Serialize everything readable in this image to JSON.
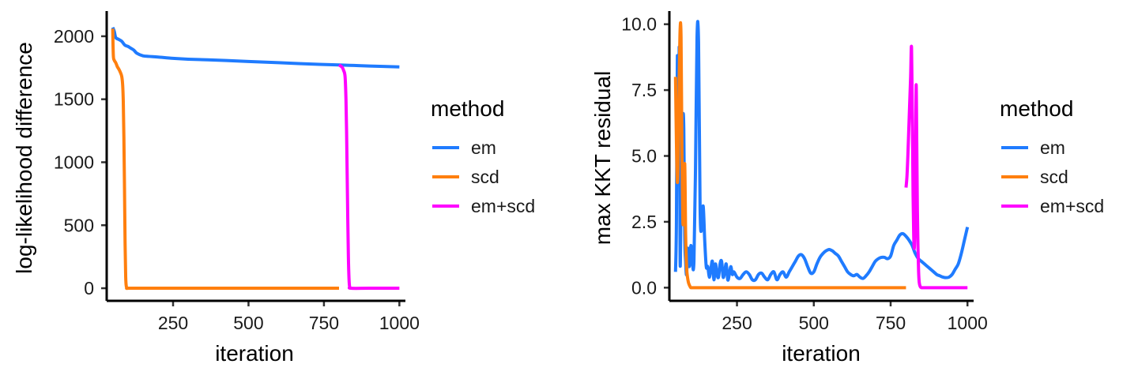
{
  "colors": {
    "em": "#1F7BFF",
    "scd": "#FF7F0E",
    "em+scd": "#FF00FF"
  },
  "chart_data": [
    {
      "type": "line",
      "title": "",
      "xlabel": "iteration",
      "ylabel": "log-likelihood difference",
      "xlim": [
        30,
        1020
      ],
      "ylim": [
        -100,
        2200
      ],
      "xticks": [
        250,
        500,
        750,
        1000
      ],
      "xtick_labels": [
        "250",
        "500",
        "750",
        "1000"
      ],
      "yticks": [
        0,
        500,
        1000,
        1500,
        2000
      ],
      "ytick_labels": [
        "0",
        "500",
        "1000",
        "1500",
        "2000"
      ],
      "legend": {
        "title": "method",
        "position": "right",
        "labels": [
          "em",
          "scd",
          "em+scd"
        ]
      },
      "series": [
        {
          "name": "em",
          "color": "#1F7BFF",
          "x": [
            50,
            55,
            60,
            70,
            80,
            90,
            100,
            110,
            120,
            130,
            150,
            170,
            200,
            250,
            300,
            400,
            500,
            600,
            700,
            800,
            850,
            900,
            1000
          ],
          "y": [
            2070,
            2040,
            1990,
            1975,
            1960,
            1930,
            1920,
            1905,
            1890,
            1865,
            1845,
            1840,
            1835,
            1825,
            1818,
            1810,
            1800,
            1790,
            1780,
            1772,
            1768,
            1764,
            1757
          ]
        },
        {
          "name": "scd",
          "color": "#FF7F0E",
          "x": [
            50,
            52,
            55,
            60,
            65,
            70,
            75,
            80,
            83,
            85,
            87,
            89,
            91,
            93,
            95,
            98,
            100,
            150,
            300,
            500,
            700,
            800
          ],
          "y": [
            2060,
            1850,
            1810,
            1790,
            1760,
            1740,
            1715,
            1680,
            1610,
            1480,
            1200,
            800,
            350,
            90,
            15,
            0,
            0,
            0,
            0,
            0,
            0,
            0
          ]
        },
        {
          "name": "em+scd",
          "color": "#FF00FF",
          "x": [
            800,
            810,
            815,
            820,
            823,
            825,
            827,
            829,
            831,
            833,
            835,
            840,
            900,
            1000
          ],
          "y": [
            1772,
            1755,
            1730,
            1680,
            1500,
            1250,
            900,
            550,
            250,
            80,
            15,
            0,
            0,
            0
          ]
        }
      ]
    },
    {
      "type": "line",
      "title": "",
      "xlabel": "iteration",
      "ylabel": "max KKT residual",
      "xlim": [
        30,
        1020
      ],
      "ylim": [
        -0.5,
        10.5
      ],
      "xticks": [
        250,
        500,
        750,
        1000
      ],
      "xtick_labels": [
        "250",
        "500",
        "750",
        "1000"
      ],
      "yticks": [
        0,
        2.5,
        5,
        7.5,
        10
      ],
      "ytick_labels": [
        "0.0",
        "2.5",
        "5.0",
        "7.5",
        "10.0"
      ],
      "legend": {
        "title": "method",
        "position": "right",
        "labels": [
          "em",
          "scd",
          "em+scd"
        ]
      },
      "series": [
        {
          "name": "em",
          "color": "#1F7BFF",
          "x": [
            50,
            53,
            56,
            59,
            62,
            65,
            68,
            71,
            74,
            77,
            80,
            83,
            86,
            90,
            95,
            100,
            105,
            110,
            115,
            120,
            125,
            130,
            135,
            140,
            145,
            150,
            155,
            160,
            165,
            170,
            175,
            180,
            185,
            190,
            195,
            200,
            205,
            210,
            215,
            220,
            225,
            230,
            235,
            240,
            250,
            260,
            270,
            280,
            290,
            300,
            310,
            320,
            330,
            340,
            350,
            360,
            370,
            380,
            390,
            400,
            410,
            420,
            430,
            440,
            450,
            460,
            470,
            480,
            490,
            500,
            510,
            520,
            530,
            540,
            550,
            560,
            570,
            580,
            590,
            600,
            610,
            620,
            630,
            640,
            650,
            660,
            670,
            680,
            690,
            700,
            710,
            720,
            730,
            740,
            750,
            760,
            770,
            780,
            790,
            800,
            810,
            820,
            830,
            840,
            850,
            860,
            870,
            880,
            890,
            900,
            910,
            920,
            930,
            940,
            950,
            960,
            970,
            980,
            990,
            1000
          ],
          "y": [
            0.6,
            2.5,
            8.8,
            4.0,
            9.1,
            1.0,
            3.5,
            5.0,
            6.5,
            6.0,
            2.0,
            1.0,
            0.5,
            1.5,
            0.8,
            1.6,
            0.9,
            1.0,
            4.5,
            9.5,
            9.3,
            3.0,
            2.2,
            3.1,
            1.8,
            0.8,
            0.8,
            0.4,
            0.7,
            1.0,
            0.3,
            0.9,
            0.5,
            0.4,
            0.9,
            1.0,
            0.4,
            0.6,
            0.9,
            0.3,
            0.5,
            0.8,
            0.5,
            0.6,
            0.4,
            0.35,
            0.5,
            0.6,
            0.5,
            0.3,
            0.3,
            0.5,
            0.55,
            0.4,
            0.3,
            0.5,
            0.6,
            0.3,
            0.5,
            0.6,
            0.4,
            0.6,
            0.8,
            1.0,
            1.2,
            1.25,
            1.1,
            0.8,
            0.55,
            0.6,
            0.9,
            1.15,
            1.3,
            1.4,
            1.45,
            1.4,
            1.3,
            1.2,
            1.0,
            0.8,
            0.6,
            0.5,
            0.45,
            0.5,
            0.4,
            0.35,
            0.45,
            0.6,
            0.8,
            1.0,
            1.1,
            1.15,
            1.15,
            1.1,
            1.2,
            1.6,
            1.8,
            2.0,
            2.05,
            1.95,
            1.8,
            1.6,
            1.3,
            1.1,
            1.0,
            0.9,
            0.8,
            0.7,
            0.6,
            0.5,
            0.45,
            0.4,
            0.38,
            0.4,
            0.5,
            0.7,
            0.9,
            1.3,
            1.8,
            2.3
          ]
        },
        {
          "name": "scd",
          "color": "#FF7F0E",
          "x": [
            50,
            53,
            56,
            59,
            62,
            65,
            68,
            71,
            74,
            77,
            80,
            83,
            86,
            89,
            92,
            95,
            98,
            100,
            105,
            150,
            300,
            500,
            700,
            800
          ],
          "y": [
            8.0,
            5.5,
            4.0,
            5.0,
            7.8,
            9.8,
            9.5,
            5.0,
            2.5,
            3.0,
            4.7,
            2.0,
            0.8,
            0.4,
            0.2,
            0.1,
            0.03,
            0.0,
            0.0,
            0.0,
            0.0,
            0.0,
            0.0,
            0.0
          ]
        },
        {
          "name": "em+scd",
          "color": "#FF00FF",
          "x": [
            800,
            803,
            806,
            809,
            812,
            815,
            818,
            821,
            823,
            825,
            827,
            829,
            831,
            833,
            835,
            837,
            839,
            841,
            843,
            846,
            850,
            860,
            900,
            1000
          ],
          "y": [
            3.8,
            4.2,
            5.0,
            6.0,
            7.0,
            8.0,
            9.1,
            6.0,
            3.5,
            2.0,
            1.5,
            2.5,
            5.0,
            7.7,
            5.5,
            3.0,
            1.5,
            0.6,
            0.2,
            0.05,
            0.0,
            0.0,
            0.0,
            0.0
          ]
        }
      ]
    }
  ]
}
